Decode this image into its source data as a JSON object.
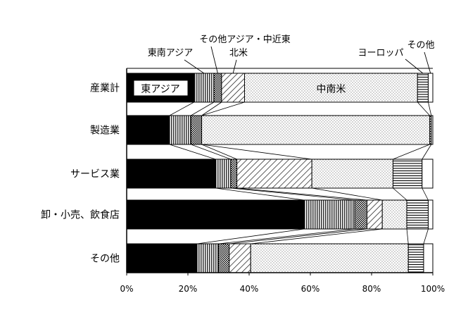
{
  "chart_data": {
    "type": "bar",
    "orientation": "horizontal",
    "stacked": true,
    "percent": true,
    "categories": [
      "産業計",
      "製造業",
      "サービス業",
      "卸・小売、飲食店",
      "その他"
    ],
    "series": [
      {
        "name": "東アジア",
        "pattern": "black",
        "values": [
          22,
          14,
          29,
          58,
          23
        ]
      },
      {
        "name": "東南アジア",
        "pattern": "vlines",
        "values": [
          6.5,
          7,
          5,
          16.5,
          7
        ]
      },
      {
        "name": "その他アジア・中近東",
        "pattern": "crosshatch",
        "values": [
          2.5,
          3.5,
          2,
          4,
          3.5
        ]
      },
      {
        "name": "北米",
        "pattern": "diagonal",
        "values": [
          7.5,
          0,
          24.5,
          5,
          7
        ]
      },
      {
        "name": "中南米",
        "pattern": "dots",
        "values": [
          56.5,
          74.5,
          26.5,
          8,
          51.5
        ]
      },
      {
        "name": "ヨーロッパ",
        "pattern": "hlines",
        "values": [
          3.5,
          0.5,
          9.5,
          7,
          5
        ]
      },
      {
        "name": "その他",
        "pattern": "white",
        "values": [
          1.5,
          0.5,
          3.5,
          1.5,
          3
        ]
      }
    ],
    "xaxis": {
      "ticks": [
        "0%",
        "20%",
        "40%",
        "60%",
        "80%",
        "100%"
      ],
      "range": [
        0,
        100
      ]
    },
    "legend": "callouts above the top bar",
    "in_bar_labels": {
      "東アジア": "東アジア",
      "中南米": "中南米"
    },
    "connector_lines": true
  }
}
